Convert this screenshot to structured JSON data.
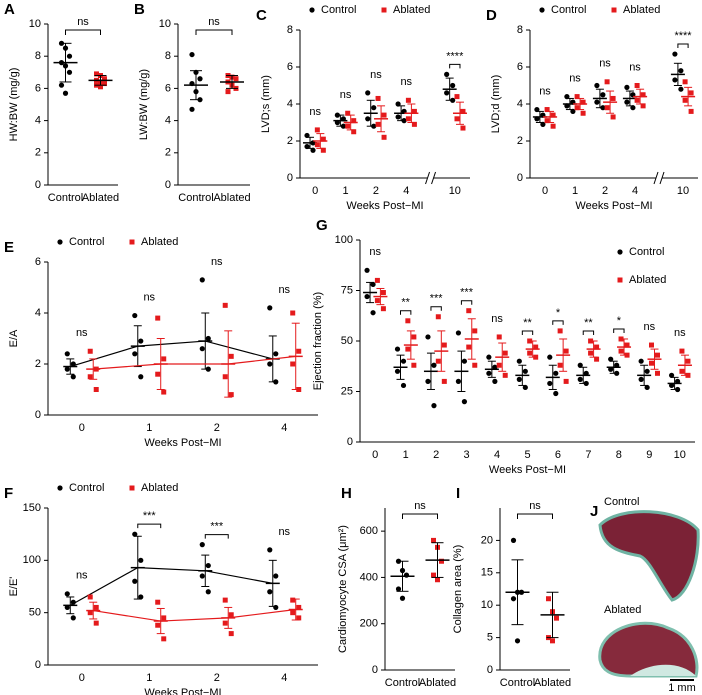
{
  "chart_data": [
    {
      "type": "group-dot",
      "panel": "A",
      "ylabel": "HW:BW (mg/g)",
      "categories": [
        "Control",
        "Ablated"
      ],
      "colors": [
        "#000000",
        "#e41a1c"
      ],
      "means": [
        7.6,
        6.5
      ],
      "sds": [
        1.2,
        0.3
      ],
      "points": [
        [
          8.8,
          8.5,
          8.0,
          7.6,
          7.4,
          7.0,
          6.2,
          5.7
        ],
        [
          6.9,
          6.8,
          6.6,
          6.5,
          6.4,
          6.3,
          6.2,
          6.1
        ]
      ],
      "sig": "ns",
      "ylim": [
        0,
        10
      ],
      "yticks": [
        0,
        2,
        4,
        6,
        8,
        10
      ]
    },
    {
      "type": "group-dot",
      "panel": "B",
      "ylabel": "LW:BW (mg/g)",
      "categories": [
        "Control",
        "Ablated"
      ],
      "colors": [
        "#000000",
        "#e41a1c"
      ],
      "means": [
        6.2,
        6.4
      ],
      "sds": [
        0.9,
        0.4
      ],
      "points": [
        [
          8.1,
          7.0,
          6.6,
          6.3,
          5.8,
          5.3,
          4.7
        ],
        [
          6.8,
          6.7,
          6.6,
          6.4,
          6.2,
          6.0,
          5.8
        ]
      ],
      "sig": "ns",
      "ylim": [
        0,
        10
      ],
      "yticks": [
        0,
        2,
        4,
        6,
        8,
        10
      ]
    },
    {
      "type": "time-dot",
      "panel": "C",
      "ylabel": "LVD;s (mm)",
      "xlabel": "Weeks Post−MI",
      "categories": [
        "0",
        "1",
        "2",
        "4",
        "10"
      ],
      "axis_break": true,
      "connect": false,
      "legend": "top",
      "series": [
        {
          "name": "Control",
          "color": "#000000",
          "marker": "circle",
          "means": [
            1.9,
            3.1,
            3.5,
            3.5,
            4.8
          ],
          "sds": [
            0.3,
            0.3,
            0.7,
            0.4,
            0.6
          ],
          "points": [
            [
              2.3,
              1.9,
              1.7,
              1.5
            ],
            [
              3.4,
              3.2,
              3.0,
              2.8
            ],
            [
              4.6,
              3.8,
              3.2,
              2.8
            ],
            [
              4.0,
              3.6,
              3.3,
              3.1
            ],
            [
              5.6,
              5.0,
              4.6,
              4.2
            ]
          ]
        },
        {
          "name": "Ablated",
          "color": "#e41a1c",
          "marker": "square",
          "means": [
            2.0,
            3.0,
            3.2,
            3.5,
            3.5
          ],
          "sds": [
            0.4,
            0.4,
            0.7,
            0.5,
            0.6
          ],
          "points": [
            [
              2.6,
              2.1,
              1.8,
              1.5
            ],
            [
              3.5,
              3.1,
              2.8,
              2.5
            ],
            [
              4.3,
              3.4,
              2.9,
              2.2
            ],
            [
              4.2,
              3.6,
              3.2,
              2.9
            ],
            [
              4.4,
              3.6,
              3.2,
              2.7
            ]
          ]
        }
      ],
      "sig": [
        "ns",
        "ns",
        "ns",
        "ns",
        "****"
      ],
      "ylim": [
        0,
        8
      ],
      "yticks": [
        0,
        2,
        4,
        6,
        8
      ]
    },
    {
      "type": "time-dot",
      "panel": "D",
      "ylabel": "LVD;d (mm)",
      "xlabel": "Weeks Post−MI",
      "categories": [
        "0",
        "1",
        "2",
        "4",
        "10"
      ],
      "axis_break": true,
      "connect": false,
      "legend": "top",
      "series": [
        {
          "name": "Control",
          "color": "#000000",
          "marker": "circle",
          "means": [
            3.3,
            4.0,
            4.3,
            4.3,
            5.6
          ],
          "sds": [
            0.3,
            0.3,
            0.5,
            0.4,
            0.6
          ],
          "points": [
            [
              3.7,
              3.4,
              3.2,
              2.9
            ],
            [
              4.4,
              4.1,
              3.9,
              3.6
            ],
            [
              5.0,
              4.5,
              4.1,
              3.8
            ],
            [
              4.9,
              4.5,
              4.1,
              3.8
            ],
            [
              6.7,
              5.8,
              5.3,
              4.8
            ]
          ]
        },
        {
          "name": "Ablated",
          "color": "#e41a1c",
          "marker": "square",
          "means": [
            3.3,
            4.0,
            4.1,
            4.4,
            4.4
          ],
          "sds": [
            0.3,
            0.3,
            0.6,
            0.4,
            0.5
          ],
          "points": [
            [
              3.7,
              3.4,
              3.1,
              2.8
            ],
            [
              4.4,
              4.1,
              3.8,
              3.5
            ],
            [
              5.2,
              4.3,
              3.8,
              3.3
            ],
            [
              5.0,
              4.5,
              4.2,
              3.9
            ],
            [
              5.2,
              4.6,
              4.2,
              3.6
            ]
          ]
        }
      ],
      "sig": [
        "ns",
        "ns",
        "ns",
        "ns",
        "****"
      ],
      "ylim": [
        0,
        8
      ],
      "yticks": [
        0,
        2,
        4,
        6,
        8
      ]
    },
    {
      "type": "time-dot",
      "panel": "E",
      "ylabel": "E/A",
      "xlabel": "Weeks Post−MI",
      "categories": [
        "0",
        "1",
        "2",
        "4"
      ],
      "axis_break": false,
      "connect": true,
      "legend": "top",
      "series": [
        {
          "name": "Control",
          "color": "#000000",
          "marker": "circle",
          "means": [
            1.9,
            2.7,
            2.9,
            2.2
          ],
          "sds": [
            0.3,
            0.8,
            1.1,
            0.9
          ],
          "points": [
            [
              2.4,
              2.0,
              1.8,
              1.5
            ],
            [
              3.9,
              2.9,
              2.4,
              1.5
            ],
            [
              5.3,
              3.0,
              2.6,
              1.8
            ],
            [
              4.2,
              2.4,
              2.0,
              1.3
            ]
          ]
        },
        {
          "name": "Ablated",
          "color": "#e41a1c",
          "marker": "square",
          "means": [
            1.8,
            2.0,
            2.0,
            2.3
          ],
          "sds": [
            0.4,
            1.0,
            1.3,
            1.3
          ],
          "points": [
            [
              2.5,
              1.8,
              1.5,
              1.0
            ],
            [
              3.8,
              2.2,
              1.6,
              0.9
            ],
            [
              4.3,
              2.3,
              1.5,
              0.8
            ],
            [
              4.0,
              2.5,
              2.0,
              1.0
            ]
          ]
        }
      ],
      "sig": [
        "ns",
        "ns",
        "ns",
        "ns"
      ],
      "ylim": [
        0,
        6
      ],
      "yticks": [
        0,
        2,
        4,
        6
      ]
    },
    {
      "type": "time-dot",
      "panel": "G",
      "ylabel": "Ejection fraction (%)",
      "xlabel": "Weeks Post−MI",
      "categories": [
        "0",
        "1",
        "2",
        "3",
        "4",
        "5",
        "6",
        "7",
        "8",
        "9",
        "10"
      ],
      "axis_break": false,
      "connect": false,
      "legend": "upper right",
      "series": [
        {
          "name": "Control",
          "color": "#000000",
          "marker": "circle",
          "means": [
            74,
            37,
            35,
            35,
            36,
            33,
            32,
            33,
            37,
            33,
            29
          ],
          "sds": [
            5,
            6,
            9,
            10,
            4,
            5,
            6,
            4,
            3,
            5,
            3
          ],
          "points": [
            [
              85,
              78,
              72,
              64
            ],
            [
              46,
              40,
              35,
              28
            ],
            [
              52,
              38,
              30,
              18
            ],
            [
              54,
              40,
              30,
              20
            ],
            [
              42,
              37,
              34,
              30
            ],
            [
              40,
              35,
              31,
              27
            ],
            [
              42,
              34,
              29,
              24
            ],
            [
              38,
              34,
              31,
              29
            ],
            [
              41,
              38,
              36,
              34
            ],
            [
              40,
              35,
              31,
              27
            ],
            [
              33,
              30,
              28,
              26
            ]
          ]
        },
        {
          "name": "Ablated",
          "color": "#e41a1c",
          "marker": "square",
          "means": [
            72,
            48,
            45,
            51,
            42,
            46,
            43,
            46,
            47,
            41,
            38
          ],
          "sds": [
            4,
            7,
            10,
            10,
            7,
            4,
            8,
            4,
            4,
            5,
            5
          ],
          "points": [
            [
              80,
              74,
              70,
              66
            ],
            [
              60,
              52,
              46,
              38
            ],
            [
              62,
              48,
              40,
              30
            ],
            [
              65,
              55,
              47,
              38
            ],
            [
              52,
              44,
              38,
              33
            ],
            [
              50,
              47,
              44,
              42
            ],
            [
              55,
              45,
              38,
              30
            ],
            [
              50,
              47,
              44,
              41
            ],
            [
              51,
              48,
              45,
              43
            ],
            [
              48,
              43,
              39,
              34
            ],
            [
              45,
              40,
              35,
              33
            ]
          ]
        }
      ],
      "sig": [
        "ns",
        "**",
        "***",
        "***",
        "ns",
        "**",
        "*",
        "**",
        "*",
        "ns",
        "ns"
      ],
      "ylim": [
        0,
        100
      ],
      "yticks": [
        0,
        25,
        50,
        75,
        100
      ]
    },
    {
      "type": "time-dot",
      "panel": "F",
      "ylabel": "E/E'",
      "xlabel": "Weeks Post−MI",
      "categories": [
        "0",
        "1",
        "2",
        "4"
      ],
      "axis_break": false,
      "connect": true,
      "legend": "top",
      "series": [
        {
          "name": "Control",
          "color": "#000000",
          "marker": "circle",
          "means": [
            57,
            93,
            90,
            78
          ],
          "sds": [
            8,
            30,
            15,
            22
          ],
          "points": [
            [
              68,
              60,
              55,
              45
            ],
            [
              125,
              100,
              80,
              65
            ],
            [
              115,
              95,
              85,
              70
            ],
            [
              110,
              85,
              70,
              55
            ]
          ]
        },
        {
          "name": "Ablated",
          "color": "#e41a1c",
          "marker": "square",
          "means": [
            52,
            42,
            45,
            53
          ],
          "sds": [
            8,
            12,
            10,
            10
          ],
          "points": [
            [
              65,
              55,
              50,
              40
            ],
            [
              60,
              45,
              38,
              25
            ],
            [
              62,
              48,
              40,
              30
            ],
            [
              62,
              55,
              50,
              45
            ]
          ]
        }
      ],
      "sig": [
        "ns",
        "***",
        "***",
        "ns"
      ],
      "ylim": [
        0,
        150
      ],
      "yticks": [
        0,
        50,
        100,
        150
      ]
    },
    {
      "type": "group-dot",
      "panel": "H",
      "ylabel": "Cardiomyocyte CSA (μm²)",
      "categories": [
        "Control",
        "Ablated"
      ],
      "colors": [
        "#000000",
        "#e41a1c"
      ],
      "means": [
        405,
        475
      ],
      "sds": [
        65,
        75
      ],
      "points": [
        [
          470,
          430,
          410,
          350,
          310
        ],
        [
          560,
          530,
          470,
          410,
          390
        ]
      ],
      "sig": "ns",
      "ylim": [
        0,
        700
      ],
      "yticks": [
        0,
        200,
        400,
        600
      ]
    },
    {
      "type": "group-dot",
      "panel": "I",
      "ylabel": "Collagen area (%)",
      "categories": [
        "Control",
        "Ablated"
      ],
      "colors": [
        "#000000",
        "#e41a1c"
      ],
      "means": [
        12,
        8.5
      ],
      "sds": [
        5,
        3.5
      ],
      "points": [
        [
          20,
          12,
          12,
          11,
          4.5
        ],
        [
          11,
          9,
          8,
          5,
          4.5
        ]
      ],
      "sig": "ns",
      "ylim": [
        0,
        25
      ],
      "yticks": [
        0,
        5,
        10,
        15,
        20
      ]
    }
  ],
  "panel_j": {
    "panel": "J",
    "labels": [
      "Control",
      "Ablated"
    ],
    "scale_bar": "1 mm"
  }
}
